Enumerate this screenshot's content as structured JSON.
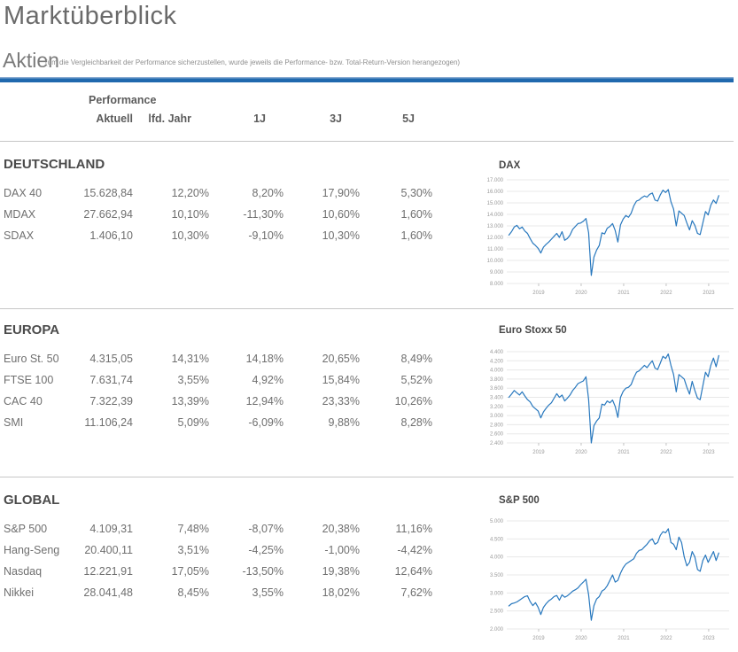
{
  "page": {
    "title": "Marktüberblick"
  },
  "section": {
    "heading": "Aktien",
    "note": "(um die Vergleichbarkeit der Performance sicherzustellen, wurde jeweils die Performance- bzw. Total-Return-Version herangezogen)"
  },
  "table": {
    "group_header": "Performance",
    "columns": [
      "Aktuell",
      "lfd. Jahr",
      "1J",
      "3J",
      "5J"
    ],
    "sections": [
      {
        "name": "DEUTSCHLAND",
        "rows": [
          {
            "label": "DAX 40",
            "values": [
              "15.628,84",
              "12,20%",
              "8,20%",
              "17,90%",
              "5,30%"
            ]
          },
          {
            "label": "MDAX",
            "values": [
              "27.662,94",
              "10,10%",
              "-11,30%",
              "10,60%",
              "1,60%"
            ]
          },
          {
            "label": "SDAX",
            "values": [
              "1.406,10",
              "10,30%",
              "-9,10%",
              "10,30%",
              "1,60%"
            ]
          }
        ]
      },
      {
        "name": "EUROPA",
        "rows": [
          {
            "label": "Euro St. 50",
            "values": [
              "4.315,05",
              "14,31%",
              "14,18%",
              "20,65%",
              "8,49%"
            ]
          },
          {
            "label": "FTSE 100",
            "values": [
              "7.631,74",
              "3,55%",
              "4,92%",
              "15,84%",
              "5,52%"
            ]
          },
          {
            "label": "CAC 40",
            "values": [
              "7.322,39",
              "13,39%",
              "12,94%",
              "23,33%",
              "10,26%"
            ]
          },
          {
            "label": "SMI",
            "values": [
              "11.106,24",
              "5,09%",
              "-6,09%",
              "9,88%",
              "8,28%"
            ]
          }
        ]
      },
      {
        "name": "GLOBAL",
        "rows": [
          {
            "label": "S&P 500",
            "values": [
              "4.109,31",
              "7,48%",
              "-8,07%",
              "20,38%",
              "11,16%"
            ]
          },
          {
            "label": "Hang-Seng",
            "values": [
              "20.400,11",
              "3,51%",
              "-4,25%",
              "-1,00%",
              "-4,42%"
            ]
          },
          {
            "label": "Nasdaq",
            "values": [
              "12.221,91",
              "17,05%",
              "-13,50%",
              "19,38%",
              "12,64%"
            ]
          },
          {
            "label": "Nikkei",
            "values": [
              "28.041,48",
              "8,45%",
              "3,55%",
              "18,02%",
              "7,62%"
            ]
          }
        ]
      }
    ]
  },
  "colors": {
    "accent_bar": "#2069ae",
    "line_blue": "#2878be",
    "gridline": "#e8e8e8",
    "axis_text": "#9a9a9a"
  },
  "chart_data": [
    {
      "type": "line",
      "title": "DAX",
      "x_tick_labels": [
        "2019",
        "2020",
        "2021",
        "2022",
        "2023"
      ],
      "y_tick_labels": [
        "17.000",
        "16.000",
        "15.000",
        "14.000",
        "13.000",
        "12.000",
        "11.000",
        "10.000",
        "9.000",
        "8.000"
      ],
      "y_range": [
        8000,
        17000
      ],
      "x_range": [
        2018.25,
        2023.46
      ],
      "x_start": 2018.3,
      "x_step": 0.0625,
      "line_color": "#2878be",
      "values": [
        12200,
        12500,
        12900,
        13050,
        12750,
        12900,
        12550,
        12350,
        11900,
        11500,
        11300,
        11050,
        10650,
        11150,
        11400,
        11600,
        11850,
        12100,
        12350,
        12000,
        12500,
        11750,
        11900,
        12200,
        12700,
        12950,
        13200,
        13250,
        13400,
        13650,
        12400,
        8700,
        10300,
        10900,
        11300,
        12400,
        12300,
        12800,
        12950,
        13200,
        12600,
        11600,
        13100,
        13600,
        13900,
        13750,
        14100,
        14750,
        15150,
        15250,
        15450,
        15600,
        15500,
        15750,
        15850,
        15250,
        15150,
        15700,
        16100,
        15900,
        16150,
        15100,
        14450,
        13000,
        14300,
        14100,
        13900,
        13250,
        12650,
        13450,
        13050,
        12350,
        12250,
        13250,
        14250,
        13950,
        14800,
        15250,
        14950,
        15630
      ]
    },
    {
      "type": "line",
      "title": "Euro Stoxx 50",
      "x_tick_labels": [
        "2019",
        "2020",
        "2021",
        "2022",
        "2023"
      ],
      "y_tick_labels": [
        "4.400",
        "4.200",
        "4.000",
        "3.800",
        "3.600",
        "3.400",
        "3.200",
        "3.000",
        "2.800",
        "2.600",
        "2.400"
      ],
      "y_range": [
        2400,
        4400
      ],
      "x_range": [
        2018.25,
        2023.46
      ],
      "x_start": 2018.3,
      "x_step": 0.0625,
      "line_color": "#2878be",
      "values": [
        3400,
        3470,
        3550,
        3500,
        3450,
        3520,
        3430,
        3350,
        3300,
        3200,
        3150,
        3100,
        2950,
        3080,
        3160,
        3230,
        3280,
        3380,
        3480,
        3400,
        3450,
        3320,
        3380,
        3450,
        3550,
        3620,
        3700,
        3730,
        3760,
        3850,
        3350,
        2400,
        2780,
        2880,
        2950,
        3250,
        3230,
        3320,
        3280,
        3340,
        3200,
        2960,
        3400,
        3530,
        3600,
        3620,
        3680,
        3830,
        3950,
        3980,
        4040,
        4100,
        4050,
        4130,
        4200,
        4040,
        4010,
        4150,
        4300,
        4250,
        4350,
        4100,
        3900,
        3520,
        3900,
        3850,
        3800,
        3620,
        3470,
        3750,
        3550,
        3380,
        3350,
        3650,
        3950,
        3850,
        4100,
        4260,
        4070,
        4315
      ]
    },
    {
      "type": "line",
      "title": "S&P 500",
      "x_tick_labels": [
        "2019",
        "2020",
        "2021",
        "2022",
        "2023"
      ],
      "y_tick_labels": [
        "5.000",
        "4.500",
        "4.000",
        "3.500",
        "3.000",
        "2.500",
        "2.000"
      ],
      "y_range": [
        2000,
        5000
      ],
      "x_range": [
        2018.25,
        2023.46
      ],
      "x_start": 2018.3,
      "x_step": 0.0625,
      "line_color": "#2878be",
      "values": [
        2640,
        2700,
        2720,
        2750,
        2800,
        2850,
        2900,
        2920,
        2760,
        2650,
        2730,
        2600,
        2400,
        2600,
        2700,
        2780,
        2830,
        2900,
        2930,
        2800,
        2950,
        2880,
        2920,
        2980,
        3050,
        3090,
        3140,
        3230,
        3300,
        3380,
        2950,
        2240,
        2650,
        2830,
        2900,
        3050,
        3100,
        3200,
        3350,
        3500,
        3300,
        3350,
        3550,
        3700,
        3800,
        3850,
        3900,
        3950,
        4100,
        4180,
        4200,
        4280,
        4350,
        4450,
        4500,
        4350,
        4400,
        4600,
        4700,
        4670,
        4780,
        4400,
        4350,
        4200,
        4550,
        4400,
        4000,
        3750,
        3850,
        4150,
        4000,
        3650,
        3600,
        3900,
        4050,
        3850,
        4000,
        4150,
        3900,
        4109
      ]
    }
  ]
}
